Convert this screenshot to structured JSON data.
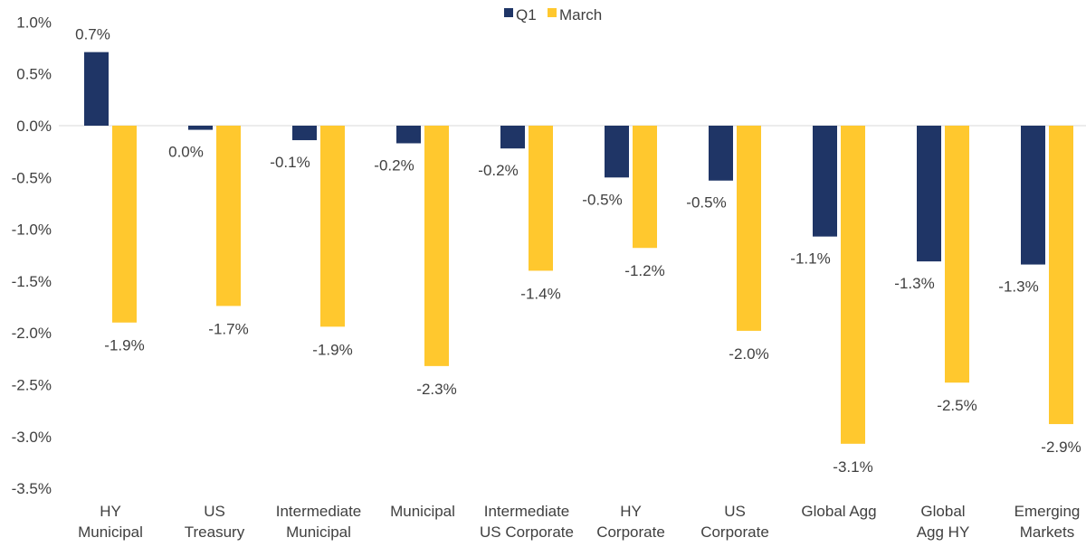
{
  "chart_data": {
    "type": "bar",
    "title": "",
    "xlabel": "",
    "ylabel": "",
    "ylim": [
      -3.5,
      1.0
    ],
    "yticks": [
      "1.0%",
      "0.5%",
      "0.0%",
      "-0.5%",
      "-1.0%",
      "-1.5%",
      "-2.0%",
      "-2.5%",
      "-3.0%",
      "-3.5%"
    ],
    "ytick_values": [
      1.0,
      0.5,
      0.0,
      -0.5,
      -1.0,
      -1.5,
      -2.0,
      -2.5,
      -3.0,
      -3.5
    ],
    "grid": false,
    "legend": "top-center",
    "categories": [
      [
        "HY",
        "Municipal"
      ],
      [
        "US",
        "Treasury"
      ],
      [
        "Intermediate",
        "Municipal"
      ],
      [
        "Municipal"
      ],
      [
        "Intermediate",
        "US Corporate"
      ],
      [
        "HY",
        "Corporate"
      ],
      [
        "US",
        "Corporate"
      ],
      [
        "Global Agg"
      ],
      [
        "Global",
        "Agg HY"
      ],
      [
        "Emerging",
        "Markets"
      ]
    ],
    "series": [
      {
        "name": "Q1",
        "color": "#1f3566",
        "values": [
          0.71,
          -0.04,
          -0.14,
          -0.17,
          -0.22,
          -0.5,
          -0.53,
          -1.07,
          -1.31,
          -1.34
        ],
        "labels": [
          "0.7%",
          "0.0%",
          "-0.1%",
          "-0.2%",
          "-0.2%",
          "-0.5%",
          "-0.5%",
          "-1.1%",
          "-1.3%",
          "-1.3%"
        ]
      },
      {
        "name": "March",
        "color": "#ffc82e",
        "values": [
          -1.9,
          -1.74,
          -1.94,
          -2.32,
          -1.4,
          -1.18,
          -1.98,
          -3.07,
          -2.48,
          -2.88
        ],
        "labels": [
          "-1.9%",
          "-1.7%",
          "-1.9%",
          "-2.3%",
          "-1.4%",
          "-1.2%",
          "-2.0%",
          "-3.1%",
          "-2.5%",
          "-2.9%"
        ]
      }
    ]
  }
}
